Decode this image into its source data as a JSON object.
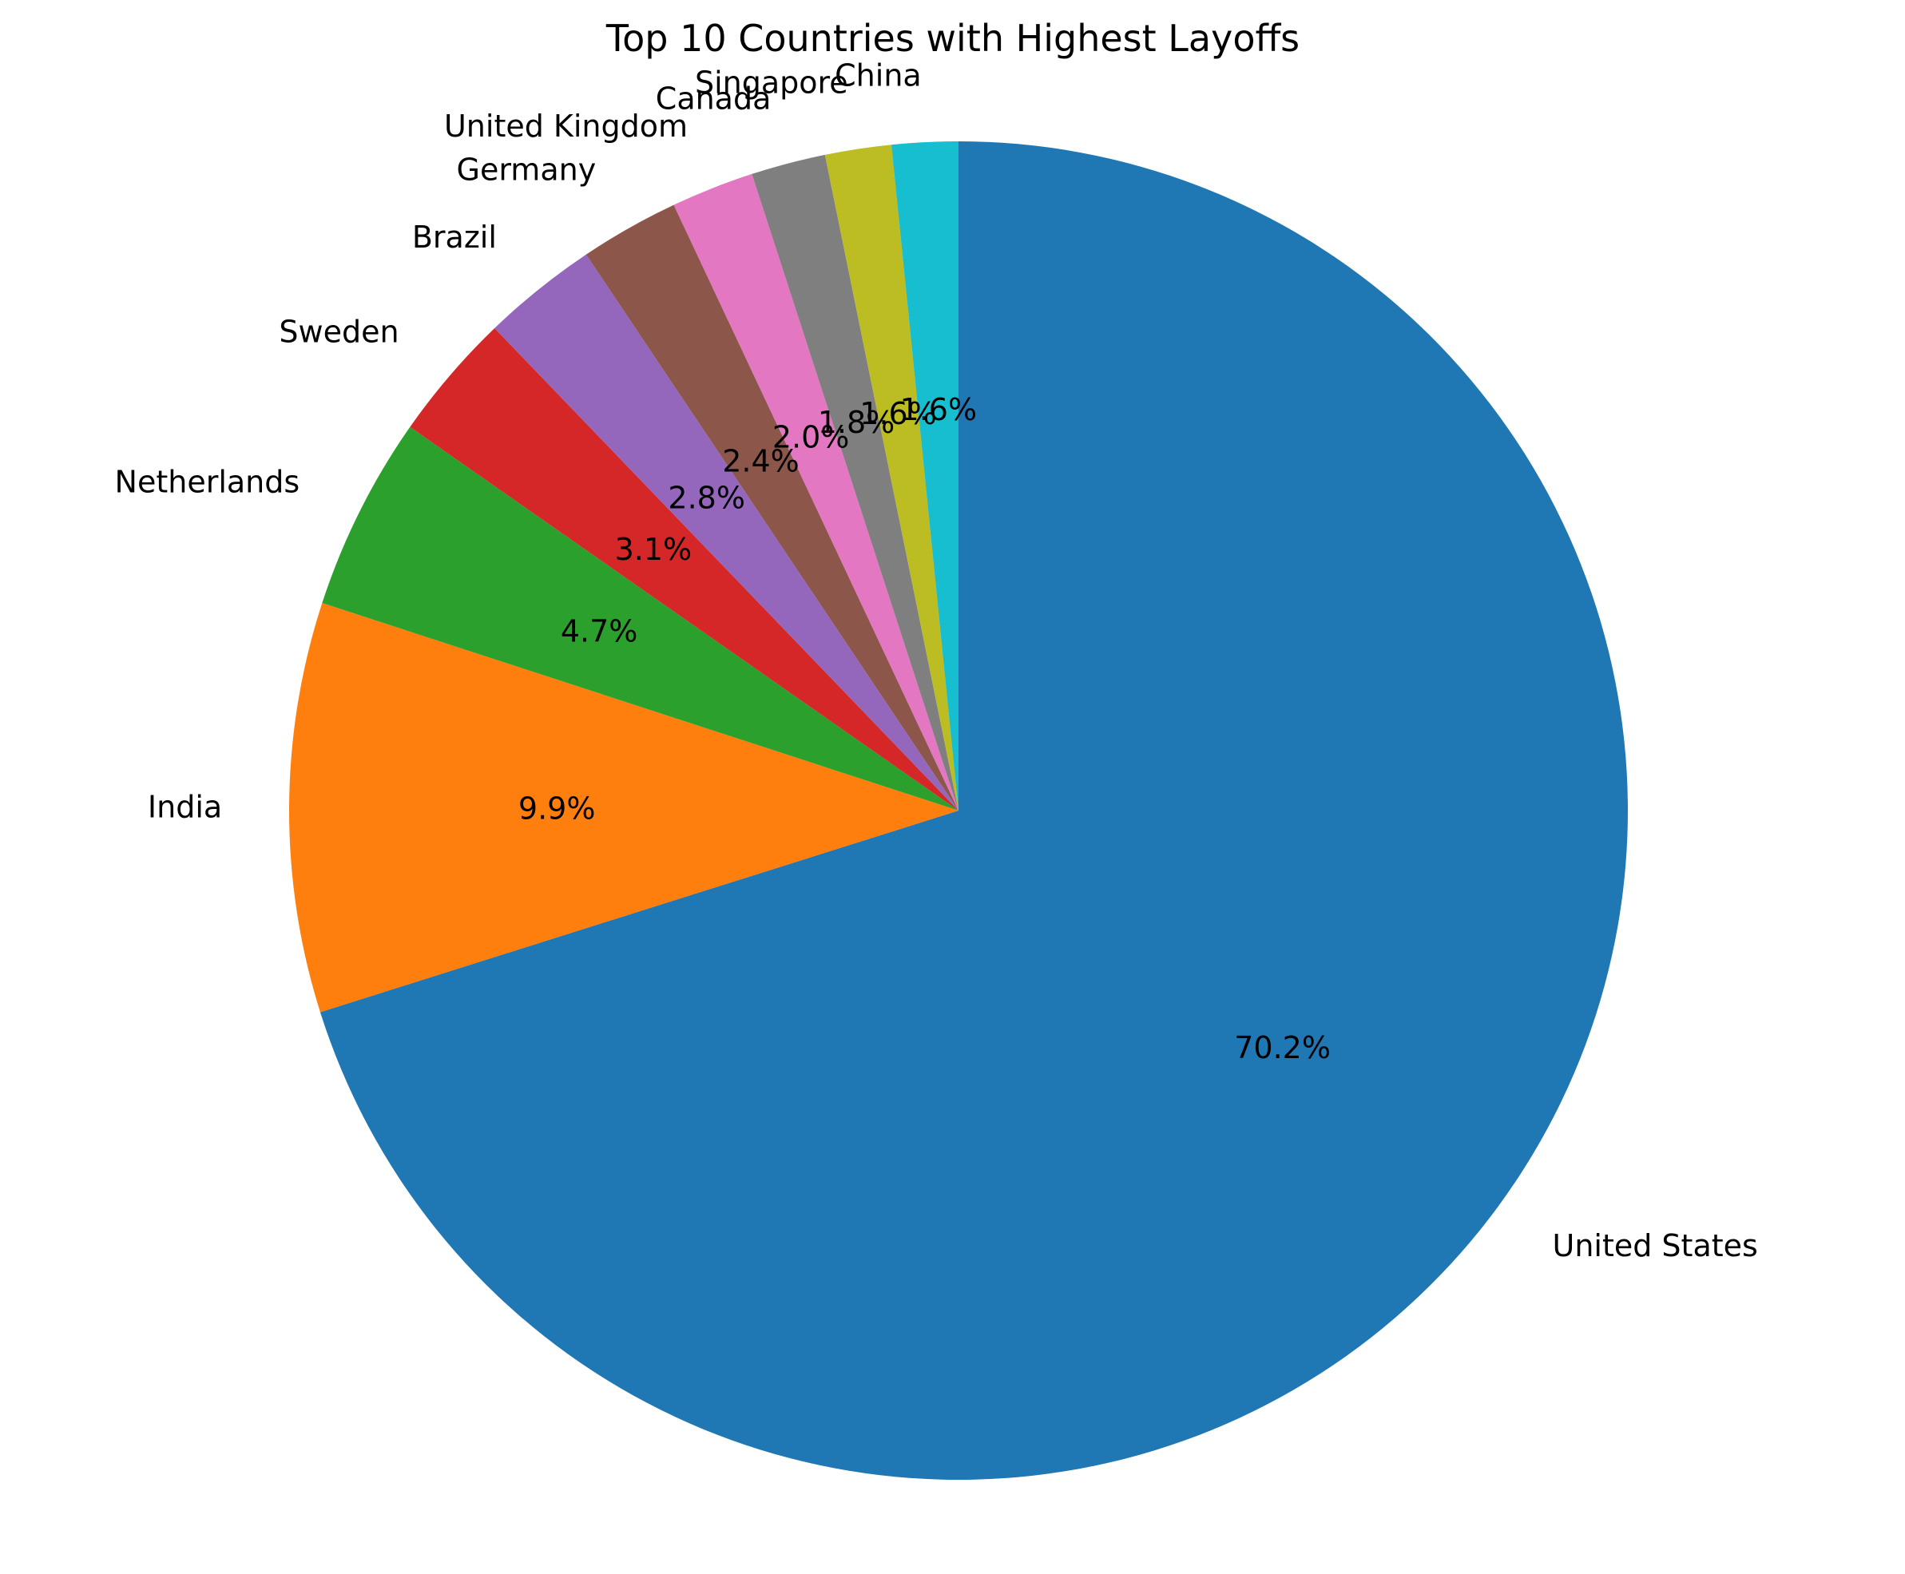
{
  "chart_data": {
    "type": "pie",
    "title": "Top 10 Countries with Highest Layoffs",
    "categories": [
      "United States",
      "India",
      "Netherlands",
      "Sweden",
      "Brazil",
      "Germany",
      "United Kingdom",
      "Canada",
      "Singapore",
      "China"
    ],
    "values": [
      70.2,
      9.9,
      4.7,
      3.1,
      2.8,
      2.4,
      2.0,
      1.8,
      1.6,
      1.6
    ],
    "value_labels": [
      "70.2%",
      "9.9%",
      "4.7%",
      "3.1%",
      "2.8%",
      "2.4%",
      "2.0%",
      "1.8%",
      "1.6%",
      "1.6%"
    ],
    "colors": [
      "#1f77b4",
      "#ff7f0e",
      "#2ca02c",
      "#d62728",
      "#9467bd",
      "#8c564b",
      "#e377c2",
      "#7f7f7f",
      "#bcbd22",
      "#17becf"
    ],
    "start_angle_deg": 90,
    "direction": "clockwise",
    "legend": "none"
  }
}
